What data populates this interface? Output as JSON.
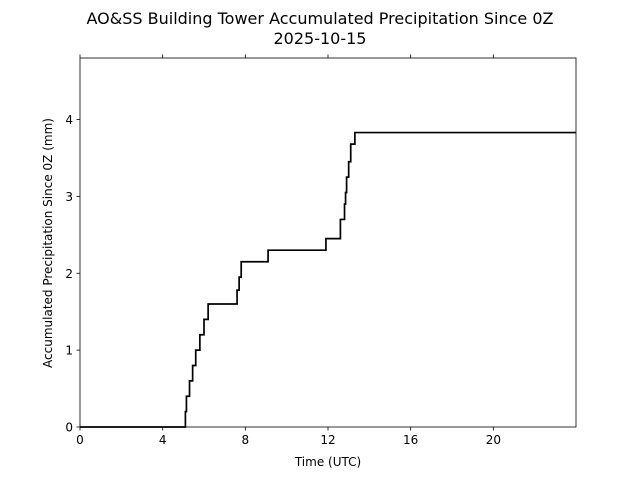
{
  "chart_data": {
    "type": "line",
    "title": "AO&SS Building Tower Accumulated Precipitation Since 0Z",
    "subtitle": "2025-10-15",
    "xlabel": "Time (UTC)",
    "ylabel": "Accumulated Precipitation Since 0Z (mm)",
    "xlim": [
      0,
      24
    ],
    "ylim": [
      0,
      4.8
    ],
    "x_ticks": [
      0,
      4,
      8,
      12,
      16,
      20
    ],
    "y_ticks": [
      0,
      1,
      2,
      3,
      4
    ],
    "grid": false,
    "line_color": "#000000",
    "series": [
      {
        "step": "post",
        "x": [
          0,
          5.1,
          5.15,
          5.3,
          5.45,
          5.6,
          5.8,
          6.0,
          6.2,
          7.6,
          7.7,
          7.8,
          9.1,
          11.9,
          12.6,
          12.8,
          12.85,
          12.9,
          13.0,
          13.1,
          13.3,
          24
        ],
        "y": [
          0,
          0.2,
          0.4,
          0.6,
          0.8,
          1.0,
          1.2,
          1.4,
          1.6,
          1.78,
          1.95,
          2.15,
          2.3,
          2.45,
          2.7,
          2.9,
          3.05,
          3.25,
          3.45,
          3.68,
          3.83,
          3.83
        ]
      }
    ]
  }
}
